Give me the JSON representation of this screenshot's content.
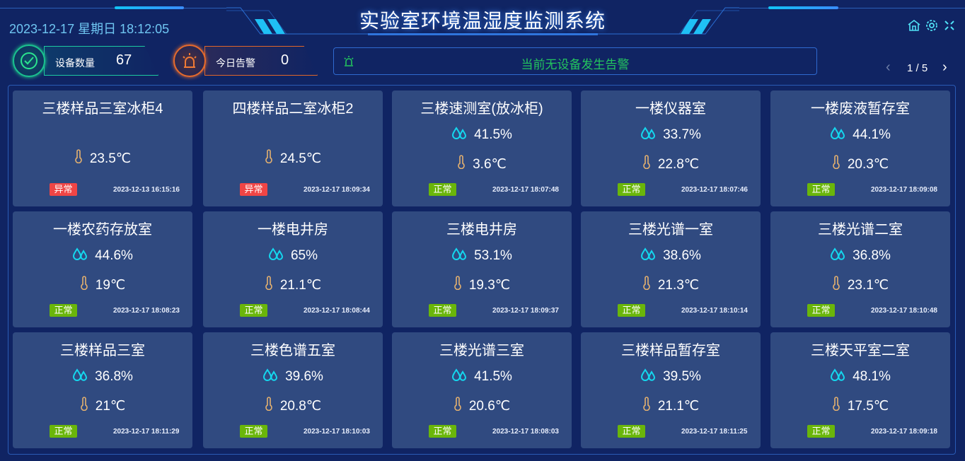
{
  "header": {
    "title": "实验室环境温湿度监测系统",
    "datetime": "2023-12-17 星期日 18:12:05",
    "icons": [
      "home-icon",
      "gear-icon",
      "fullscreen-icon"
    ]
  },
  "stats": {
    "device_label": "设备数量",
    "device_count": "67",
    "alarm_label": "今日告警",
    "alarm_count": "0"
  },
  "alert": {
    "text": "当前无设备发生告警",
    "icon": "alarm-light-icon"
  },
  "pager": {
    "text": "1 / 5"
  },
  "colors": {
    "normal": "#6ab60a",
    "abnormal": "#f04545",
    "humidity": "#14d7ee",
    "temperature": "#e3b06f",
    "accent": "#4fe0f5"
  },
  "devices": [
    {
      "name": "三楼样品三室冰柜4",
      "humidity": null,
      "temperature": "23.5℃",
      "status": "异常",
      "time": "2023-12-13 16:15:16"
    },
    {
      "name": "四楼样品二室冰柜2",
      "humidity": null,
      "temperature": "24.5℃",
      "status": "异常",
      "time": "2023-12-17 18:09:34"
    },
    {
      "name": "三楼速测室(放冰柜)",
      "humidity": "41.5%",
      "temperature": "3.6℃",
      "status": "正常",
      "time": "2023-12-17 18:07:48"
    },
    {
      "name": "一楼仪器室",
      "humidity": "33.7%",
      "temperature": "22.8℃",
      "status": "正常",
      "time": "2023-12-17 18:07:46"
    },
    {
      "name": "一楼废液暂存室",
      "humidity": "44.1%",
      "temperature": "20.3℃",
      "status": "正常",
      "time": "2023-12-17 18:09:08"
    },
    {
      "name": "一楼农药存放室",
      "humidity": "44.6%",
      "temperature": "19℃",
      "status": "正常",
      "time": "2023-12-17 18:08:23"
    },
    {
      "name": "一楼电井房",
      "humidity": "65%",
      "temperature": "21.1℃",
      "status": "正常",
      "time": "2023-12-17 18:08:44"
    },
    {
      "name": "三楼电井房",
      "humidity": "53.1%",
      "temperature": "19.3℃",
      "status": "正常",
      "time": "2023-12-17 18:09:37"
    },
    {
      "name": "三楼光谱一室",
      "humidity": "38.6%",
      "temperature": "21.3℃",
      "status": "正常",
      "time": "2023-12-17 18:10:14"
    },
    {
      "name": "三楼光谱二室",
      "humidity": "36.8%",
      "temperature": "23.1℃",
      "status": "正常",
      "time": "2023-12-17 18:10:48"
    },
    {
      "name": "三楼样品三室",
      "humidity": "36.8%",
      "temperature": "21℃",
      "status": "正常",
      "time": "2023-12-17 18:11:29"
    },
    {
      "name": "三楼色谱五室",
      "humidity": "39.6%",
      "temperature": "20.8℃",
      "status": "正常",
      "time": "2023-12-17 18:10:03"
    },
    {
      "name": "三楼光谱三室",
      "humidity": "41.5%",
      "temperature": "20.6℃",
      "status": "正常",
      "time": "2023-12-17 18:08:03"
    },
    {
      "name": "三楼样品暂存室",
      "humidity": "39.5%",
      "temperature": "21.1℃",
      "status": "正常",
      "time": "2023-12-17 18:11:25"
    },
    {
      "name": "三楼天平室二室",
      "humidity": "48.1%",
      "temperature": "17.5℃",
      "status": "正常",
      "time": "2023-12-17 18:09:18"
    }
  ]
}
